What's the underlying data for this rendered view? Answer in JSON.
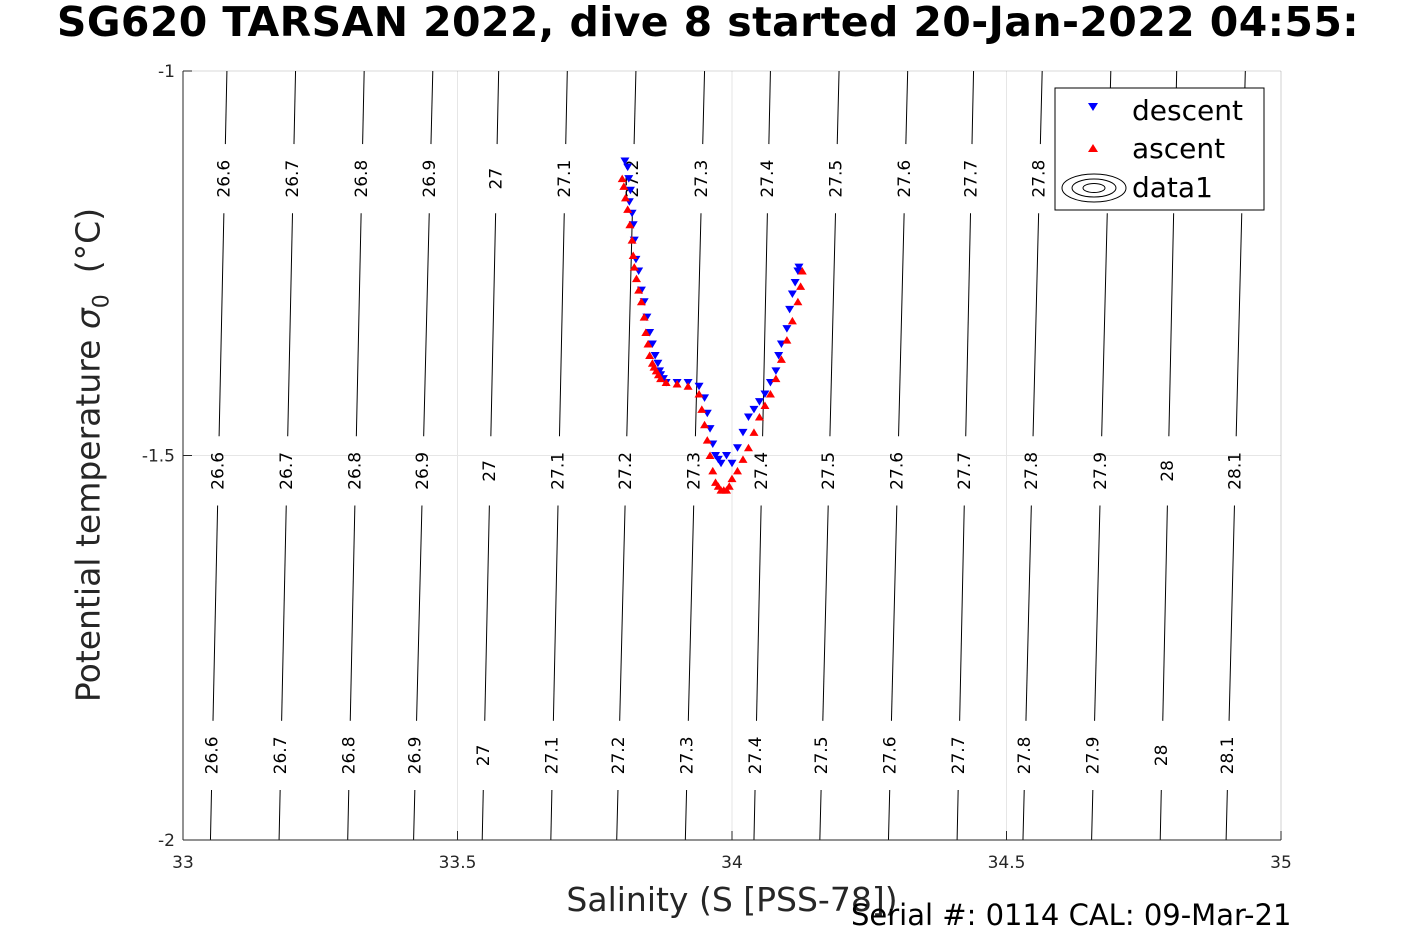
{
  "title": "SG620 TARSAN 2022, dive 8 started 20-Jan-2022 04:55:",
  "footer": {
    "serial": "Serial #: 0114  CAL: 09-Mar-21"
  },
  "chart_data": {
    "type": "scatter",
    "xlabel": "Salinity (S [PSS-78])",
    "ylabel": "Potential temperature",
    "ylabel_symbol": "σ",
    "ylabel_subscript": "0",
    "ylabel_unit": "(°C)",
    "xlim": [
      33,
      35
    ],
    "ylim": [
      -2,
      -1
    ],
    "xticks": [
      33,
      33.5,
      34,
      34.5,
      35
    ],
    "xtick_labels": [
      "33",
      "33.5",
      "34",
      "34.5",
      "35"
    ],
    "yticks": [
      -2,
      -1.5,
      -1
    ],
    "ytick_labels": [
      "-2",
      "-1.5",
      "-1"
    ],
    "grid": true,
    "legend_position": "top-right",
    "legend": [
      "descent",
      "ascent",
      "data1"
    ],
    "colors": {
      "descent": "#0000ff",
      "ascent": "#ff0000",
      "contours": "#000000"
    },
    "contours": {
      "levels": [
        26.6,
        26.7,
        26.8,
        26.9,
        27,
        27.1,
        27.2,
        27.3,
        27.4,
        27.5,
        27.6,
        27.7,
        27.8,
        27.9,
        28,
        28.1
      ],
      "level_labels": [
        "26.6",
        "26.7",
        "26.8",
        "26.9",
        "27",
        "27.1",
        "27.2",
        "27.3",
        "27.4",
        "27.5",
        "27.6",
        "27.7",
        "27.8",
        "27.9",
        "28",
        "28.1"
      ],
      "x_at_top": [
        33.08,
        33.205,
        33.33,
        33.455,
        33.575,
        33.7,
        33.825,
        33.95,
        34.07,
        34.195,
        34.32,
        34.44,
        34.565,
        34.69,
        34.81,
        34.935
      ],
      "x_at_bottom": [
        33.05,
        33.175,
        33.3,
        33.42,
        33.545,
        33.67,
        33.79,
        33.915,
        34.04,
        34.16,
        34.285,
        34.41,
        34.53,
        34.655,
        34.78,
        34.9
      ]
    },
    "series": [
      {
        "name": "descent",
        "marker": "triangle-down",
        "x": [
          33.805,
          33.81,
          33.812,
          33.815,
          33.813,
          33.818,
          33.82,
          33.822,
          33.825,
          33.83,
          33.835,
          33.84,
          33.845,
          33.85,
          33.855,
          33.86,
          33.865,
          33.868,
          33.87,
          33.875,
          33.88,
          33.9,
          33.92,
          33.94,
          33.95,
          33.955,
          33.96,
          33.965,
          33.97,
          33.975,
          33.98,
          33.99,
          34.0,
          34.01,
          34.02,
          34.03,
          34.04,
          34.05,
          34.06,
          34.07,
          34.08,
          34.085,
          34.09,
          34.1,
          34.105,
          34.11,
          34.115,
          34.12,
          34.122
        ],
        "y": [
          -1.117,
          -1.125,
          -1.14,
          -1.155,
          -1.17,
          -1.185,
          -1.2,
          -1.22,
          -1.245,
          -1.26,
          -1.285,
          -1.3,
          -1.32,
          -1.34,
          -1.355,
          -1.37,
          -1.38,
          -1.39,
          -1.395,
          -1.4,
          -1.405,
          -1.405,
          -1.405,
          -1.41,
          -1.425,
          -1.445,
          -1.465,
          -1.485,
          -1.5,
          -1.505,
          -1.51,
          -1.5,
          -1.51,
          -1.49,
          -1.47,
          -1.45,
          -1.44,
          -1.43,
          -1.42,
          -1.405,
          -1.39,
          -1.37,
          -1.355,
          -1.335,
          -1.31,
          -1.29,
          -1.275,
          -1.26,
          -1.255
        ]
      },
      {
        "name": "ascent",
        "marker": "triangle-up",
        "x": [
          33.8,
          33.803,
          33.806,
          33.81,
          33.814,
          33.818,
          33.82,
          33.822,
          33.826,
          33.83,
          33.835,
          33.84,
          33.843,
          33.847,
          33.85,
          33.855,
          33.858,
          33.862,
          33.866,
          33.87,
          33.88,
          33.9,
          33.92,
          33.94,
          33.945,
          33.95,
          33.955,
          33.96,
          33.965,
          33.97,
          33.975,
          33.98,
          33.985,
          33.99,
          33.995,
          34.0,
          34.01,
          34.02,
          34.03,
          34.04,
          34.05,
          34.06,
          34.07,
          34.08,
          34.09,
          34.1,
          34.11,
          34.12,
          34.125,
          34.128
        ],
        "y": [
          -1.14,
          -1.15,
          -1.165,
          -1.18,
          -1.2,
          -1.22,
          -1.24,
          -1.255,
          -1.27,
          -1.285,
          -1.3,
          -1.32,
          -1.34,
          -1.355,
          -1.37,
          -1.38,
          -1.385,
          -1.39,
          -1.395,
          -1.4,
          -1.405,
          -1.407,
          -1.41,
          -1.42,
          -1.44,
          -1.46,
          -1.48,
          -1.5,
          -1.52,
          -1.535,
          -1.54,
          -1.545,
          -1.545,
          -1.545,
          -1.54,
          -1.53,
          -1.52,
          -1.505,
          -1.49,
          -1.47,
          -1.45,
          -1.435,
          -1.42,
          -1.4,
          -1.375,
          -1.35,
          -1.325,
          -1.3,
          -1.28,
          -1.26
        ]
      }
    ]
  }
}
